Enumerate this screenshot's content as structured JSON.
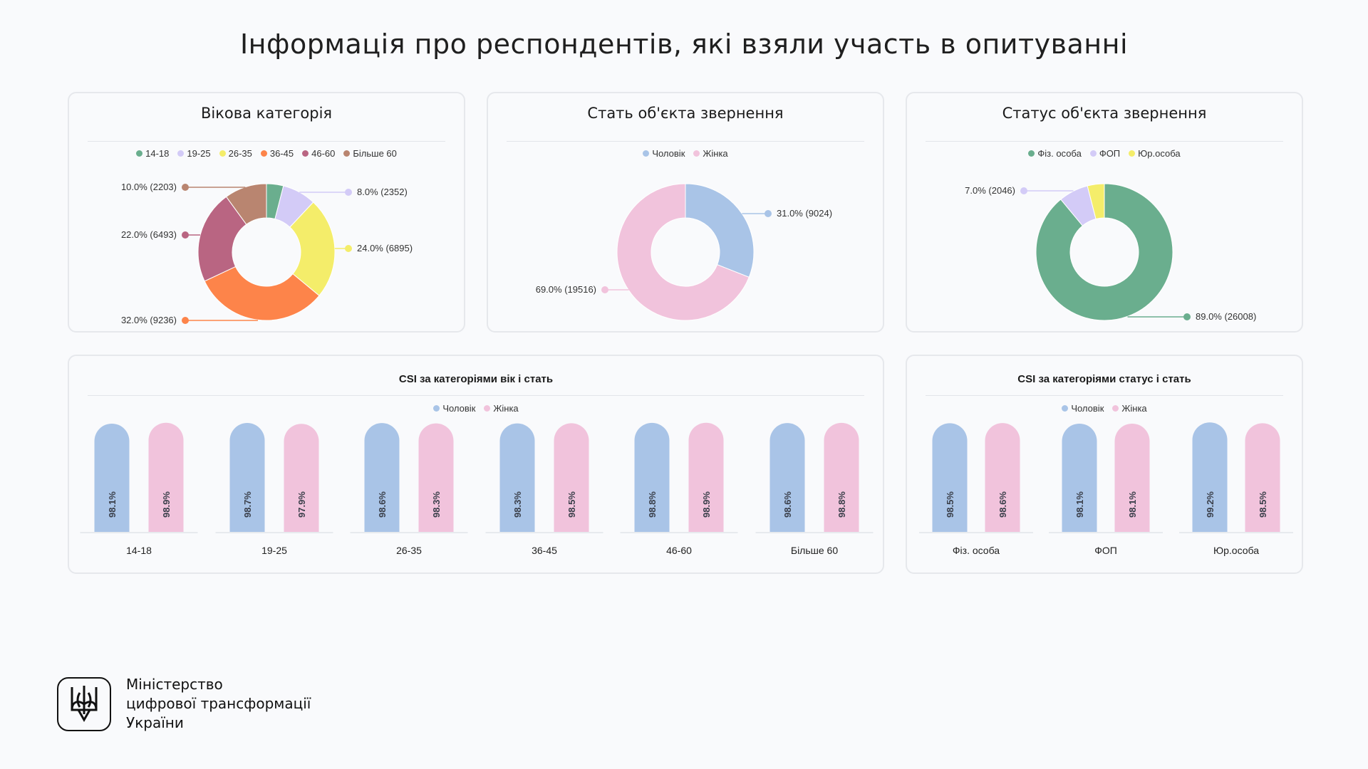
{
  "page": {
    "title": "Інформація про респондентів, які взяли участь в опитуванні"
  },
  "footer": {
    "ministry_lines": [
      "Міністерство",
      "цифрової трансформації",
      "України"
    ]
  },
  "chart_data": [
    {
      "type": "pie",
      "title": "Вікова категорія",
      "donut": true,
      "legend": "top",
      "slices": [
        {
          "name": "14-18",
          "percent": 4.0,
          "label": "",
          "color": "#6aae8e"
        },
        {
          "name": "19-25",
          "percent": 8.0,
          "label": "8.0% (2352)",
          "count": 2352,
          "color": "#d3cbf7"
        },
        {
          "name": "26-35",
          "percent": 24.0,
          "label": "24.0% (6895)",
          "count": 6895,
          "color": "#f4ed6a"
        },
        {
          "name": "36-45",
          "percent": 32.0,
          "label": "32.0% (9236)",
          "count": 9236,
          "color": "#fd844a"
        },
        {
          "name": "46-60",
          "percent": 22.0,
          "label": "22.0% (6493)",
          "count": 6493,
          "color": "#b96582"
        },
        {
          "name": "Більше 60",
          "percent": 10.0,
          "label": "10.0% (2203)",
          "count": 2203,
          "color": "#b98570"
        }
      ]
    },
    {
      "type": "pie",
      "title": "Стать об'єкта звернення",
      "donut": true,
      "legend": "top",
      "slices": [
        {
          "name": "Чоловік",
          "percent": 31.0,
          "label": "31.0% (9024)",
          "count": 9024,
          "color": "#a9c4e7"
        },
        {
          "name": "Жінка",
          "percent": 69.0,
          "label": "69.0% (19516)",
          "count": 19516,
          "color": "#f1c3dc"
        }
      ]
    },
    {
      "type": "pie",
      "title": "Статус об'єкта звернення",
      "donut": true,
      "legend": "top",
      "slices": [
        {
          "name": "Фіз. особа",
          "percent": 89.0,
          "label": "89.0% (26008)",
          "count": 26008,
          "color": "#6aae8e"
        },
        {
          "name": "ФОП",
          "percent": 7.0,
          "label": "7.0% (2046)",
          "count": 2046,
          "color": "#d3cbf7"
        },
        {
          "name": "Юр.особа",
          "percent": 4.0,
          "label": "",
          "color": "#f4ed6a"
        }
      ]
    },
    {
      "type": "bar",
      "title": "CSI за категоріями вік і стать",
      "legend": "top",
      "ylim": [
        0,
        100
      ],
      "categories": [
        "14-18",
        "19-25",
        "26-35",
        "36-45",
        "46-60",
        "Більше 60"
      ],
      "series": [
        {
          "name": "Чоловік",
          "color": "#a9c4e7",
          "values": [
            98.1,
            98.7,
            98.6,
            98.3,
            98.8,
            98.6
          ],
          "labels": [
            "98.1%",
            "98.7%",
            "98.6%",
            "98.3%",
            "98.8%",
            "98.6%"
          ]
        },
        {
          "name": "Жінка",
          "color": "#f1c3dc",
          "values": [
            98.9,
            97.9,
            98.3,
            98.5,
            98.9,
            98.8
          ],
          "labels": [
            "98.9%",
            "97.9%",
            "98.3%",
            "98.5%",
            "98.9%",
            "98.8%"
          ]
        }
      ]
    },
    {
      "type": "bar",
      "title": "CSI за категоріями статус і стать",
      "legend": "top",
      "ylim": [
        0,
        100
      ],
      "categories": [
        "Фіз. особа",
        "ФОП",
        "Юр.особа"
      ],
      "series": [
        {
          "name": "Чоловік",
          "color": "#a9c4e7",
          "values": [
            98.5,
            98.1,
            99.2
          ],
          "labels": [
            "98.5%",
            "98.1%",
            "99.2%"
          ]
        },
        {
          "name": "Жінка",
          "color": "#f1c3dc",
          "values": [
            98.6,
            98.1,
            98.5
          ],
          "labels": [
            "98.6%",
            "98.1%",
            "98.5%"
          ]
        }
      ]
    }
  ]
}
